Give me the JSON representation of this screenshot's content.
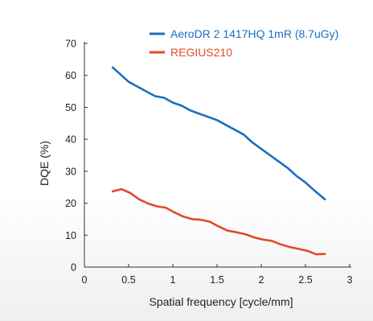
{
  "chart_data": {
    "type": "line",
    "title": "",
    "xlabel": "Spatial frequency [cycle/mm]",
    "ylabel": "DQE (%)",
    "xlim": [
      0,
      3
    ],
    "ylim": [
      0,
      70
    ],
    "xticks": [
      0,
      0.5,
      1,
      1.5,
      2,
      2.5,
      3
    ],
    "xtick_labels": [
      "0",
      "0.5",
      "1",
      "1.5",
      "2",
      "2.5",
      "3"
    ],
    "yticks": [
      0,
      10,
      20,
      30,
      40,
      50,
      60,
      70
    ],
    "ytick_labels": [
      "0",
      "10",
      "20",
      "30",
      "40",
      "50",
      "60",
      "70"
    ],
    "grid": false,
    "legend_position": "top-right",
    "series": [
      {
        "name": "AeroDR 2 1417HQ 1mR (8.7uGy)",
        "color": "#1a6fc0",
        "x": [
          0.32,
          0.4,
          0.5,
          0.6,
          0.7,
          0.8,
          0.9,
          1.0,
          1.1,
          1.2,
          1.3,
          1.4,
          1.5,
          1.6,
          1.7,
          1.8,
          1.9,
          2.0,
          2.1,
          2.2,
          2.3,
          2.4,
          2.5,
          2.6,
          2.72
        ],
        "y": [
          62.5,
          60.5,
          58,
          56.5,
          55,
          53.5,
          53,
          51.5,
          50.5,
          49,
          48,
          47,
          46,
          44.5,
          43,
          41.5,
          39,
          37,
          35,
          33,
          31,
          28.5,
          26.5,
          24,
          21.2
        ]
      },
      {
        "name": "REGIUS210",
        "color": "#e04a2a",
        "x": [
          0.32,
          0.42,
          0.52,
          0.62,
          0.72,
          0.82,
          0.92,
          1.02,
          1.12,
          1.22,
          1.32,
          1.42,
          1.52,
          1.62,
          1.72,
          1.82,
          1.92,
          2.02,
          2.12,
          2.22,
          2.32,
          2.42,
          2.52,
          2.62,
          2.72
        ],
        "y": [
          23.7,
          24.4,
          23.2,
          21.2,
          19.9,
          19.0,
          18.6,
          17.1,
          15.8,
          15.0,
          14.8,
          14.2,
          12.7,
          11.4,
          10.9,
          10.3,
          9.3,
          8.6,
          8.2,
          7.1,
          6.3,
          5.7,
          5.1,
          4.0,
          4.1
        ]
      }
    ]
  }
}
